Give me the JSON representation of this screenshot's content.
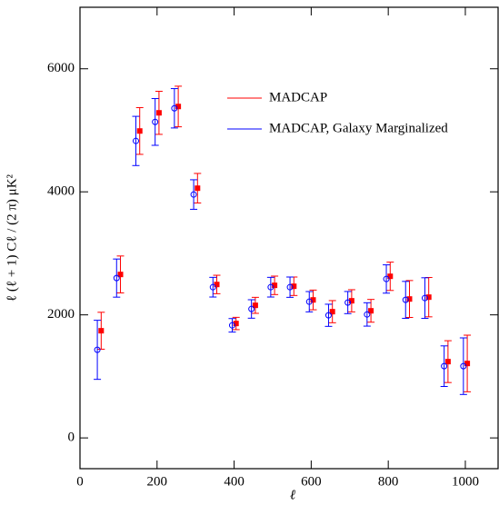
{
  "chart_data": {
    "type": "errorbar-scatter",
    "x_label": "ℓ",
    "y_label": "ℓ (ℓ + 1) Cℓ / (2 π)   μK²",
    "xlim": [
      0,
      1085
    ],
    "ylim": [
      -500,
      7000
    ],
    "xticks": [
      0,
      200,
      400,
      600,
      800,
      1000
    ],
    "yticks": [
      0,
      2000,
      4000,
      6000
    ],
    "legend": "upper center",
    "series": [
      {
        "name": "MADCAP",
        "color": "#ff0000",
        "marker": "square",
        "x": [
          55,
          105,
          155,
          205,
          255,
          305,
          355,
          405,
          455,
          505,
          555,
          605,
          655,
          705,
          755,
          805,
          855,
          905,
          955,
          1005
        ],
        "values": [
          1742,
          2657,
          4989,
          5284,
          5387,
          4059,
          2494,
          1860,
          2155,
          2480,
          2465,
          2243,
          2052,
          2229,
          2066,
          2627,
          2258,
          2288,
          1240,
          1210
        ],
        "errors": [
          300,
          300,
          380,
          350,
          330,
          240,
          150,
          100,
          130,
          150,
          150,
          160,
          180,
          180,
          185,
          230,
          300,
          320,
          340,
          460
        ]
      },
      {
        "name": "MADCAP, Galaxy Marginalized",
        "color": "#0000ff",
        "marker": "circle",
        "x": [
          45,
          95,
          145,
          195,
          245,
          295,
          345,
          395,
          445,
          495,
          545,
          595,
          645,
          695,
          745,
          795,
          845,
          895,
          945,
          995
        ],
        "values": [
          1432,
          2598,
          4827,
          5136,
          5358,
          3956,
          2450,
          1830,
          2096,
          2450,
          2450,
          2214,
          1993,
          2200,
          2007,
          2583,
          2244,
          2273,
          1166,
          1166
        ],
        "errors": [
          480,
          310,
          400,
          380,
          320,
          240,
          160,
          110,
          150,
          160,
          165,
          165,
          180,
          180,
          190,
          230,
          300,
          330,
          330,
          460
        ]
      }
    ]
  }
}
